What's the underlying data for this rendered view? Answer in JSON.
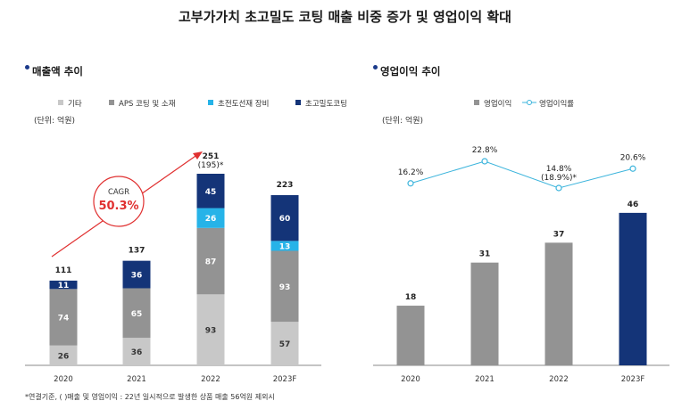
{
  "title": "고부가가치 초고밀도 코팅 매출 비중 증가 및 영업이익 확대",
  "left_section": {
    "heading": "매출액 추이",
    "unit": "(단위: 억원)"
  },
  "right_section": {
    "heading": "영업이익 추이",
    "unit": "(단위: 억원)"
  },
  "footnote": "*연결기준, (  )매출 및 영업이익 : 22년 일시적으로 발생한 상품 매출 56억원 제외시",
  "cagr": {
    "label": "CAGR",
    "value": "50.3%"
  },
  "colors": {
    "etc": "#c8c8c8",
    "aps": "#939393",
    "equip": "#26b3e8",
    "ultra": "#143478",
    "op_bar": "#939393",
    "op_bar_highlight": "#143478",
    "op_line": "#3bb4dc",
    "cagr": "#e03030"
  },
  "chart_data": [
    {
      "type": "bar",
      "stacked": true,
      "categories": [
        "2020",
        "2021",
        "2022",
        "2023F"
      ],
      "series": [
        {
          "name": "기타",
          "values": [
            26,
            36,
            93,
            57
          ],
          "color_key": "etc"
        },
        {
          "name": "APS 코팅 및 소재",
          "values": [
            74,
            65,
            87,
            93
          ],
          "color_key": "aps"
        },
        {
          "name": "초전도선재 장비",
          "values": [
            null,
            null,
            26,
            13
          ],
          "color_key": "equip"
        },
        {
          "name": "초고밀도코팅",
          "values": [
            11,
            36,
            45,
            60
          ],
          "color_key": "ultra"
        }
      ],
      "totals": [
        "111",
        "137",
        "251",
        "223"
      ],
      "total_notes": [
        "",
        "",
        "(195)*",
        ""
      ],
      "ylim": [
        0,
        270
      ],
      "legend_position": "top"
    },
    {
      "type": "bar",
      "categories": [
        "2020",
        "2021",
        "2022",
        "2023F"
      ],
      "series": [
        {
          "name": "영업이익",
          "values": [
            18,
            31,
            37,
            46
          ],
          "labels": [
            "18",
            "31",
            "37",
            "46"
          ]
        },
        {
          "name": "영업이익률",
          "type": "line",
          "values": [
            16.2,
            22.8,
            14.8,
            20.6
          ],
          "labels": [
            "16.2%",
            "22.8%",
            "14.8%\n(18.9%)*",
            "20.6%"
          ]
        }
      ],
      "ylim": [
        0,
        50
      ],
      "legend_position": "top"
    }
  ]
}
